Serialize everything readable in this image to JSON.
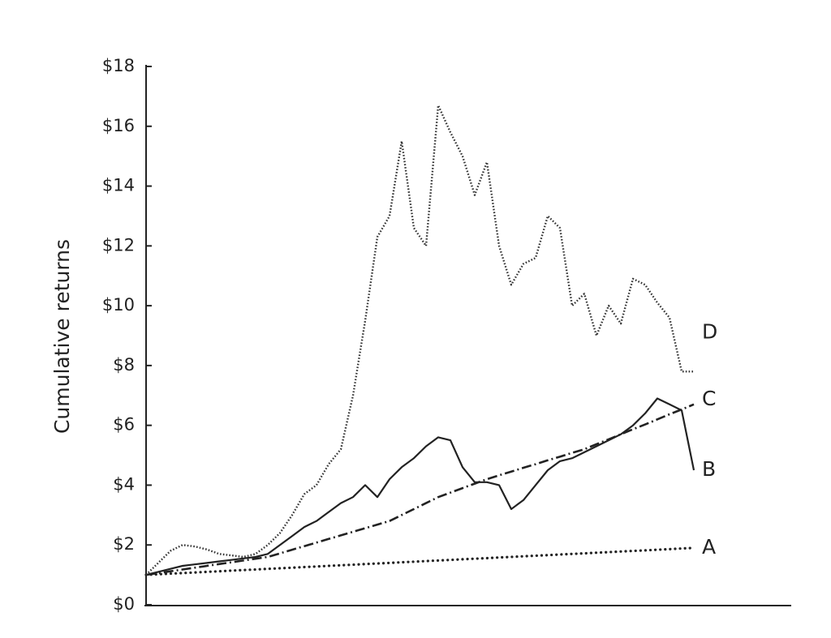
{
  "chart_data": {
    "type": "line",
    "ylabel": "Cumulative returns",
    "ylim": [
      0,
      18
    ],
    "yticks": [
      {
        "value": 0,
        "label": "$0"
      },
      {
        "value": 2,
        "label": "$2"
      },
      {
        "value": 4,
        "label": "$4"
      },
      {
        "value": 6,
        "label": "$6"
      },
      {
        "value": 8,
        "label": "$8"
      },
      {
        "value": 10,
        "label": "$10"
      },
      {
        "value": 12,
        "label": "$12"
      },
      {
        "value": 14,
        "label": "$14"
      },
      {
        "value": 16,
        "label": "$16"
      },
      {
        "value": 18,
        "label": "$18"
      }
    ],
    "grid": false,
    "categories": [
      null,
      null,
      null,
      null,
      null,
      null,
      null,
      null,
      null,
      null,
      null,
      null,
      null,
      null,
      null,
      null,
      null,
      null,
      null,
      null,
      null,
      null,
      null,
      null,
      null,
      null,
      null,
      null,
      null,
      null,
      null,
      null,
      null,
      null,
      null,
      null,
      null,
      null,
      null,
      null,
      null,
      null,
      null,
      null,
      null,
      null
    ],
    "series": [
      {
        "name": "A",
        "color": "#222222",
        "style": "dotted",
        "values": [
          1.0,
          1.02,
          1.04,
          1.06,
          1.08,
          1.1,
          1.12,
          1.14,
          1.16,
          1.18,
          1.2,
          1.22,
          1.24,
          1.26,
          1.28,
          1.3,
          1.32,
          1.34,
          1.36,
          1.38,
          1.4,
          1.42,
          1.44,
          1.46,
          1.48,
          1.5,
          1.52,
          1.54,
          1.56,
          1.58,
          1.6,
          1.62,
          1.64,
          1.66,
          1.68,
          1.7,
          1.72,
          1.74,
          1.76,
          1.78,
          1.8,
          1.82,
          1.84,
          1.86,
          1.88,
          1.9
        ]
      },
      {
        "name": "B",
        "color": "#222222",
        "style": "solid",
        "values": [
          1.0,
          1.1,
          1.2,
          1.3,
          1.35,
          1.4,
          1.45,
          1.5,
          1.55,
          1.6,
          1.7,
          2.0,
          2.3,
          2.6,
          2.8,
          3.1,
          3.4,
          3.6,
          4.0,
          3.6,
          4.2,
          4.6,
          4.9,
          5.3,
          5.6,
          5.5,
          4.6,
          4.1,
          4.1,
          4.0,
          3.2,
          3.5,
          4.0,
          4.5,
          4.8,
          4.9,
          5.1,
          5.3,
          5.5,
          5.7,
          6.0,
          6.4,
          6.9,
          6.7,
          6.5,
          4.5
        ]
      },
      {
        "name": "C",
        "color": "#222222",
        "style": "dashdot",
        "values": [
          1.0,
          1.06,
          1.12,
          1.18,
          1.24,
          1.3,
          1.36,
          1.42,
          1.48,
          1.54,
          1.6,
          1.72,
          1.84,
          1.96,
          2.08,
          2.2,
          2.32,
          2.44,
          2.56,
          2.68,
          2.8,
          3.0,
          3.2,
          3.4,
          3.6,
          3.75,
          3.9,
          4.05,
          4.2,
          4.33,
          4.45,
          4.58,
          4.7,
          4.83,
          4.95,
          5.08,
          5.2,
          5.37,
          5.53,
          5.7,
          5.87,
          6.03,
          6.2,
          6.37,
          6.53,
          6.7
        ]
      },
      {
        "name": "D",
        "color": "#333333",
        "style": "fine-dotted",
        "values": [
          1.0,
          1.4,
          1.8,
          2.0,
          1.95,
          1.85,
          1.7,
          1.65,
          1.6,
          1.7,
          2.0,
          2.4,
          3.0,
          3.7,
          4.0,
          4.7,
          5.2,
          7.0,
          9.5,
          12.3,
          13.0,
          15.5,
          12.6,
          12.0,
          16.7,
          15.8,
          15.0,
          13.7,
          14.8,
          12.0,
          10.7,
          11.4,
          11.6,
          13.0,
          12.6,
          10.0,
          10.4,
          9.0,
          10.0,
          9.4,
          10.9,
          10.7,
          10.1,
          9.6,
          7.8,
          7.8
        ]
      }
    ]
  }
}
